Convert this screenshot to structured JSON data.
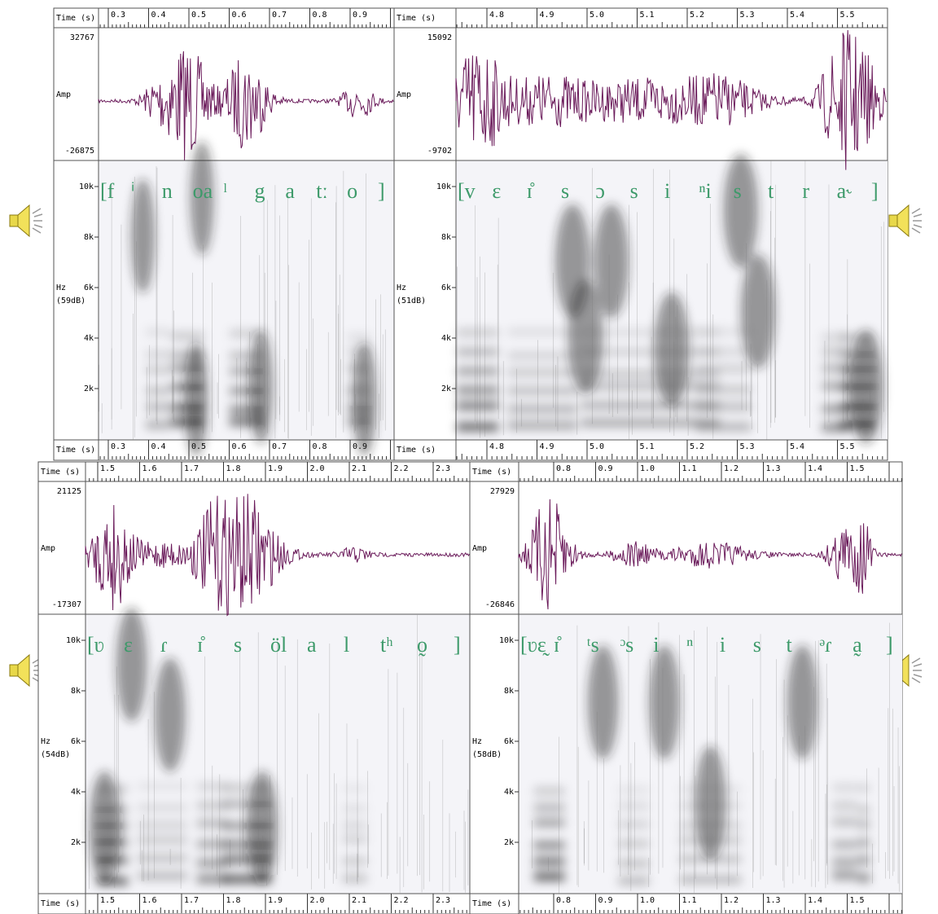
{
  "panels": [
    {
      "time_label": "Time (s)",
      "times": [
        "0.3",
        "0.4",
        "0.5",
        "0.6",
        "0.7",
        "0.8",
        "0.9"
      ],
      "amp_max": "32767",
      "amp_label": "Amp",
      "amp_min": "-26875",
      "hz_label": "Hz",
      "db": "(59dB)",
      "freq_ticks": [
        "10k",
        "8k",
        "6k",
        "4k",
        "2k"
      ],
      "transcription": [
        "[f",
        "ⁱ",
        "n",
        "oa",
        "ˡ",
        "g",
        "a",
        "tː",
        "o",
        "]"
      ]
    },
    {
      "time_label": "Time (s)",
      "times": [
        "4.8",
        "4.9",
        "5.0",
        "5.1",
        "5.2",
        "5.3",
        "5.4",
        "5.5"
      ],
      "amp_max": "15092",
      "amp_label": "Amp",
      "amp_min": "-9702",
      "hz_label": "Hz",
      "db": "(51dB)",
      "freq_ticks": [
        "10k",
        "8k",
        "6k",
        "4k",
        "2k"
      ],
      "transcription": [
        "[v",
        "ɛ",
        "ɪ̊",
        "s",
        "ɔ",
        "s",
        "i",
        "ⁿi",
        "s",
        "t",
        "r",
        "a˞",
        "]"
      ]
    },
    {
      "time_label": "Time (s)",
      "times": [
        "1.5",
        "1.6",
        "1.7",
        "1.8",
        "1.9",
        "2.0",
        "2.1",
        "2.2",
        "2.3"
      ],
      "amp_max": "21125",
      "amp_label": "Amp",
      "amp_min": "-17307",
      "hz_label": "Hz",
      "db": "(54dB)",
      "freq_ticks": [
        "10k",
        "8k",
        "6k",
        "4k",
        "2k"
      ],
      "transcription": [
        "[ʋ",
        "ɛ",
        "ɾ",
        "ɪ̊",
        "s",
        "öl",
        "a",
        "l",
        "tʰ",
        "o̰",
        "]"
      ]
    },
    {
      "time_label": "Time (s)",
      "times": [
        "0.8",
        "0.9",
        "1.0",
        "1.1",
        "1.2",
        "1.3",
        "1.4",
        "1.5"
      ],
      "amp_max": "27929",
      "amp_label": "Amp",
      "amp_min": "-26846",
      "hz_label": "Hz",
      "db": "(58dB)",
      "freq_ticks": [
        "10k",
        "8k",
        "6k",
        "4k",
        "2k"
      ],
      "transcription": [
        "[ʋɛ̰",
        "ɪ̊",
        "ᵗs",
        "ᵓs",
        "i",
        "ⁿ",
        "i",
        "s",
        "t",
        "ᵊɾ",
        "a̰",
        "]"
      ]
    }
  ]
}
